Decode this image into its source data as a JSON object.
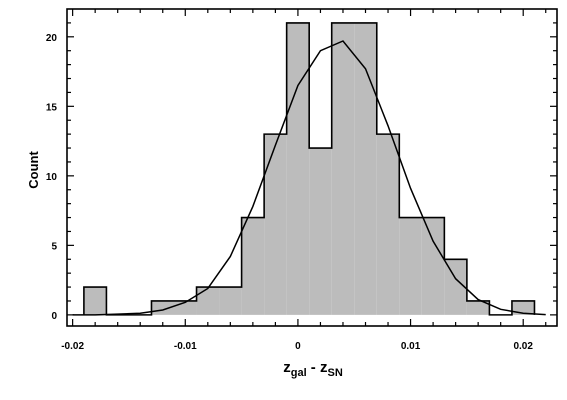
{
  "chart_data": {
    "type": "bar",
    "subtype": "histogram-with-fit-curve",
    "title": "",
    "ylabel": "Count",
    "xlabel": {
      "main": "z",
      "sub1": "gal",
      "mid": " - z",
      "sub2": "SN"
    },
    "xlim": [
      -0.0205,
      0.023
    ],
    "ylim": [
      -0.8,
      22
    ],
    "x_ticks": [
      -0.02,
      -0.01,
      0,
      0.01,
      0.02
    ],
    "x_tick_labels": [
      "-0.02",
      "-0.01",
      "0",
      "0.01",
      "0.02"
    ],
    "y_ticks": [
      0,
      5,
      10,
      15,
      20
    ],
    "y_tick_labels": [
      "0",
      "5",
      "10",
      "15",
      "20"
    ],
    "grid": false,
    "bin_width": 0.002,
    "bins": [
      {
        "x0": -0.019,
        "x1": -0.017,
        "count": 2
      },
      {
        "x0": -0.017,
        "x1": -0.015,
        "count": 0
      },
      {
        "x0": -0.015,
        "x1": -0.013,
        "count": 0
      },
      {
        "x0": -0.013,
        "x1": -0.011,
        "count": 1
      },
      {
        "x0": -0.011,
        "x1": -0.009,
        "count": 1
      },
      {
        "x0": -0.009,
        "x1": -0.007,
        "count": 2
      },
      {
        "x0": -0.007,
        "x1": -0.005,
        "count": 2
      },
      {
        "x0": -0.005,
        "x1": -0.003,
        "count": 7
      },
      {
        "x0": -0.003,
        "x1": -0.001,
        "count": 13
      },
      {
        "x0": -0.001,
        "x1": 0.001,
        "count": 21
      },
      {
        "x0": 0.001,
        "x1": 0.003,
        "count": 12
      },
      {
        "x0": 0.003,
        "x1": 0.005,
        "count": 21
      },
      {
        "x0": 0.005,
        "x1": 0.007,
        "count": 21
      },
      {
        "x0": 0.007,
        "x1": 0.009,
        "count": 13
      },
      {
        "x0": 0.009,
        "x1": 0.011,
        "count": 7
      },
      {
        "x0": 0.011,
        "x1": 0.013,
        "count": 7
      },
      {
        "x0": 0.013,
        "x1": 0.015,
        "count": 4
      },
      {
        "x0": 0.015,
        "x1": 0.017,
        "count": 1
      },
      {
        "x0": 0.017,
        "x1": 0.019,
        "count": 0
      },
      {
        "x0": 0.019,
        "x1": 0.021,
        "count": 1
      }
    ],
    "fit_curve": {
      "x": [
        -0.02,
        -0.018,
        -0.016,
        -0.014,
        -0.012,
        -0.01,
        -0.008,
        -0.006,
        -0.004,
        -0.002,
        0,
        0.002,
        0.004,
        0.006,
        0.008,
        0.01,
        0.012,
        0.014,
        0.016,
        0.018,
        0.02,
        0.022
      ],
      "y": [
        0,
        0,
        0.05,
        0.12,
        0.35,
        0.9,
        1.9,
        4.2,
        7.8,
        12.2,
        16.5,
        19.0,
        19.7,
        17.7,
        13.6,
        9.1,
        5.3,
        2.6,
        1.1,
        0.4,
        0.12,
        0.02
      ]
    },
    "colors": {
      "bar_fill": "#bcbcbc",
      "bar_stroke": "#000000",
      "curve": "#000000",
      "axis": "#000000"
    }
  }
}
